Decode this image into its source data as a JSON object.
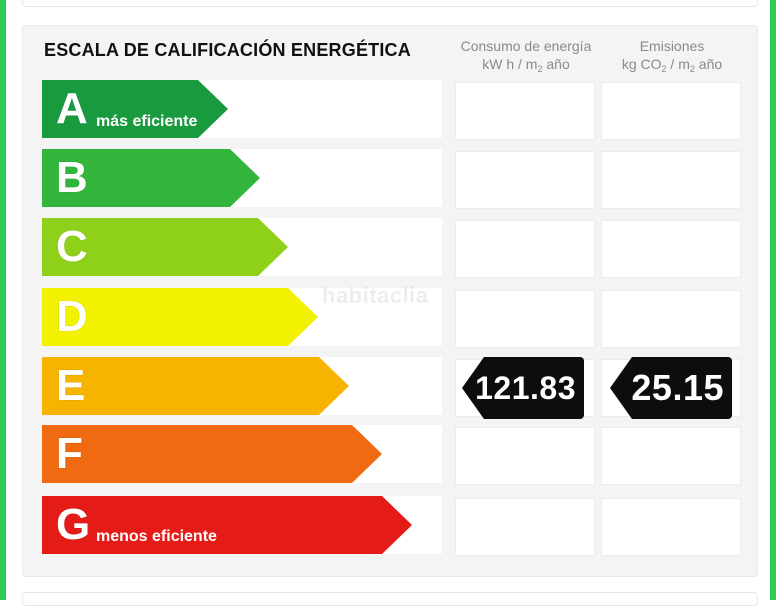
{
  "title": "ESCALA DE CALIFICACIÓN ENERGÉTICA",
  "columns": {
    "consumption": {
      "line1": "Consumo de energía",
      "line2a": "kW h / m",
      "line2sub": "2",
      "line2b": " año"
    },
    "emissions": {
      "line1": "Emisiones",
      "line2a": "kg CO",
      "line2sub": "2",
      "line2b": " / m",
      "line2sub2": "2",
      "line2c": " año"
    }
  },
  "ratings": [
    {
      "letter": "A",
      "label": "más eficiente",
      "color": "#1a9a3e"
    },
    {
      "letter": "B",
      "label": "",
      "color": "#32b53a"
    },
    {
      "letter": "C",
      "label": "",
      "color": "#8fd11a"
    },
    {
      "letter": "D",
      "label": "",
      "color": "#f2f200"
    },
    {
      "letter": "E",
      "label": "",
      "color": "#f6b300"
    },
    {
      "letter": "F",
      "label": "",
      "color": "#ef6a10"
    },
    {
      "letter": "G",
      "label": "menos eficiente",
      "color": "#e41b17"
    }
  ],
  "current_rating": "E",
  "consumption_value": "121.83",
  "emissions_value": "25.15",
  "watermark": "habitaclia"
}
